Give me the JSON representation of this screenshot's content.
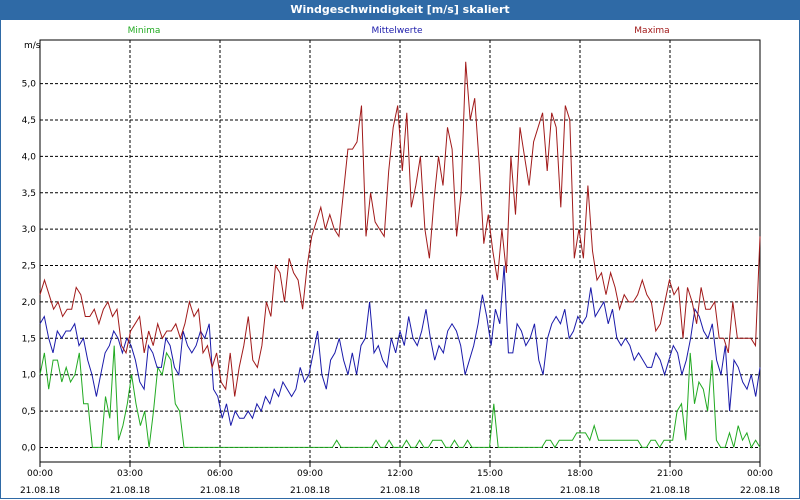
{
  "window": {
    "title": "Windgeschwindigkeit [m/s] skaliert"
  },
  "colors": {
    "minima": "#22aa22",
    "mittelwerte": "#1a1aaa",
    "maxima": "#a11a1a",
    "titlebar": "#2f6aa6"
  },
  "chart_data": {
    "type": "line",
    "ylabel": "m/s",
    "ylim": [
      -0.2,
      5.6
    ],
    "yticks": [
      "0,0",
      "0,5",
      "1,0",
      "1,5",
      "2,0",
      "2,5",
      "3,0",
      "3,5",
      "4,0",
      "4,5",
      "5,0"
    ],
    "ytick_values": [
      0,
      0.5,
      1,
      1.5,
      2,
      2.5,
      3,
      3.5,
      4,
      4.5,
      5
    ],
    "xlim": [
      0,
      24
    ],
    "xticks": [
      {
        "hour": 0,
        "time": "00:00",
        "date": "21.08.18"
      },
      {
        "hour": 3,
        "time": "03:00",
        "date": "21.08.18"
      },
      {
        "hour": 6,
        "time": "06:00",
        "date": "21.08.18"
      },
      {
        "hour": 9,
        "time": "09:00",
        "date": "21.08.18"
      },
      {
        "hour": 12,
        "time": "12:00",
        "date": "21.08.18"
      },
      {
        "hour": 15,
        "time": "15:00",
        "date": "21.08.18"
      },
      {
        "hour": 18,
        "time": "18:00",
        "date": "21.08.18"
      },
      {
        "hour": 21,
        "time": "21:00",
        "date": "21.08.18"
      },
      {
        "hour": 24,
        "time": "00:00",
        "date": "22.08.18"
      }
    ],
    "grid": true,
    "legend_position": "top",
    "x_step_hours": 0.16667,
    "series": [
      {
        "name": "Minima",
        "key": "minima",
        "values": [
          1.0,
          1.3,
          0.8,
          1.2,
          1.2,
          0.9,
          1.1,
          0.9,
          1.0,
          1.3,
          0.6,
          0.6,
          0.0,
          0.0,
          0.0,
          0.7,
          0.4,
          1.4,
          0.1,
          0.3,
          0.6,
          1.0,
          0.6,
          0.3,
          0.5,
          0.0,
          0.5,
          1.1,
          1.0,
          1.3,
          1.2,
          0.6,
          0.5,
          0.0,
          0.0,
          0.0,
          0.0,
          0.0,
          0.0,
          0.0,
          0.0,
          0.0,
          0.0,
          0.0,
          0.0,
          0.0,
          0.0,
          0.0,
          0.0,
          0.0,
          0.0,
          0.0,
          0.0,
          0.0,
          0.0,
          0.0,
          0.0,
          0.0,
          0.0,
          0.0,
          0.0,
          0.0,
          0.0,
          0.0,
          0.0,
          0.0,
          0.0,
          0.0,
          0.1,
          0.0,
          0.0,
          0.0,
          0.0,
          0.0,
          0.0,
          0.0,
          0.0,
          0.1,
          0.0,
          0.0,
          0.1,
          0.0,
          0.0,
          0.0,
          0.1,
          0.0,
          0.0,
          0.1,
          0.0,
          0.0,
          0.1,
          0.1,
          0.1,
          0.0,
          0.0,
          0.1,
          0.0,
          0.0,
          0.1,
          0.0,
          0.0,
          0.0,
          0.0,
          0.0,
          0.6,
          0.0,
          0.0,
          0.0,
          0.0,
          0.0,
          0.0,
          0.0,
          0.0,
          0.0,
          0.0,
          0.0,
          0.1,
          0.1,
          0.0,
          0.1,
          0.1,
          0.1,
          0.1,
          0.2,
          0.2,
          0.2,
          0.1,
          0.3,
          0.1,
          0.1,
          0.1,
          0.1,
          0.1,
          0.1,
          0.1,
          0.1,
          0.1,
          0.1,
          0.0,
          0.0,
          0.1,
          0.1,
          0.0,
          0.1,
          0.1,
          0.1,
          0.5,
          0.6,
          0.1,
          1.3,
          0.6,
          0.9,
          0.8,
          0.5,
          1.2,
          0.1,
          0.0,
          0.0,
          0.2,
          0.0,
          0.3,
          0.1,
          0.2,
          0.0,
          0.1,
          0.0
        ]
      },
      {
        "name": "Mittelwerte",
        "key": "mittelwerte",
        "values": [
          1.7,
          1.8,
          1.5,
          1.3,
          1.6,
          1.5,
          1.6,
          1.6,
          1.7,
          1.4,
          1.5,
          1.2,
          1.0,
          0.7,
          1.0,
          1.3,
          1.4,
          1.6,
          1.5,
          1.3,
          1.5,
          1.4,
          1.2,
          0.9,
          0.8,
          1.4,
          1.3,
          1.1,
          1.1,
          1.5,
          1.4,
          1.1,
          1.0,
          1.6,
          1.4,
          1.3,
          1.4,
          1.6,
          1.5,
          1.7,
          0.8,
          0.7,
          0.4,
          0.6,
          0.3,
          0.5,
          0.4,
          0.4,
          0.5,
          0.4,
          0.6,
          0.5,
          0.7,
          0.6,
          0.8,
          0.7,
          0.9,
          0.8,
          0.7,
          0.8,
          1.1,
          0.9,
          1.0,
          1.3,
          1.6,
          1.0,
          0.8,
          1.2,
          1.3,
          1.5,
          1.2,
          1.0,
          1.3,
          1.0,
          1.4,
          1.5,
          2.0,
          1.3,
          1.4,
          1.2,
          1.1,
          1.5,
          1.3,
          1.6,
          1.4,
          1.8,
          1.5,
          1.4,
          1.6,
          1.9,
          1.5,
          1.2,
          1.4,
          1.3,
          1.6,
          1.7,
          1.6,
          1.4,
          1.0,
          1.2,
          1.4,
          1.7,
          2.1,
          1.8,
          1.4,
          1.9,
          1.7,
          2.5,
          1.3,
          1.3,
          1.7,
          1.6,
          1.4,
          1.5,
          1.7,
          1.2,
          1.0,
          1.5,
          1.7,
          1.8,
          1.7,
          1.9,
          1.5,
          1.6,
          1.8,
          1.7,
          1.8,
          2.2,
          1.8,
          1.9,
          2.0,
          1.7,
          1.9,
          1.5,
          1.4,
          1.5,
          1.4,
          1.2,
          1.3,
          1.2,
          1.1,
          1.1,
          1.3,
          1.2,
          1.0,
          1.2,
          1.4,
          1.3,
          1.0,
          1.2,
          1.5,
          1.9,
          1.8,
          1.6,
          1.5,
          1.7,
          1.2,
          1.0,
          1.4,
          0.5,
          1.2,
          1.1,
          0.9,
          0.8,
          1.0,
          0.7,
          1.1
        ]
      },
      {
        "name": "Maxima",
        "key": "maxima",
        "values": [
          2.1,
          2.3,
          2.1,
          1.9,
          2.0,
          1.8,
          1.9,
          1.9,
          2.2,
          2.1,
          1.8,
          1.8,
          1.9,
          1.7,
          1.9,
          2.0,
          1.8,
          1.9,
          1.4,
          1.3,
          1.6,
          1.7,
          1.8,
          1.3,
          1.6,
          1.4,
          1.7,
          1.5,
          1.6,
          1.6,
          1.7,
          1.5,
          1.7,
          2.0,
          1.8,
          1.9,
          1.3,
          1.4,
          1.1,
          1.3,
          0.9,
          0.8,
          1.3,
          0.7,
          1.1,
          1.4,
          1.8,
          1.2,
          1.1,
          1.4,
          2.0,
          1.8,
          2.5,
          2.4,
          2.0,
          2.6,
          2.4,
          2.3,
          1.9,
          2.5,
          2.9,
          3.1,
          3.3,
          3.0,
          3.2,
          3.0,
          2.9,
          3.5,
          4.1,
          4.1,
          4.2,
          4.7,
          2.9,
          3.5,
          3.1,
          3.0,
          2.9,
          3.8,
          4.4,
          4.7,
          3.8,
          4.6,
          3.3,
          3.6,
          4.0,
          3.0,
          2.6,
          3.4,
          4.0,
          3.6,
          4.4,
          4.1,
          2.9,
          3.5,
          5.3,
          4.5,
          4.8,
          3.9,
          2.8,
          3.2,
          2.7,
          2.3,
          3.0,
          2.4,
          4.0,
          3.2,
          4.4,
          4.0,
          3.6,
          4.2,
          4.4,
          4.6,
          3.8,
          4.6,
          4.4,
          3.3,
          4.7,
          4.5,
          2.6,
          3.0,
          2.6,
          3.6,
          2.7,
          2.3,
          2.4,
          2.1,
          2.4,
          2.2,
          1.9,
          2.1,
          2.0,
          2.0,
          2.1,
          2.3,
          2.1,
          2.0,
          1.6,
          1.7,
          2.0,
          2.3,
          2.1,
          2.2,
          1.5,
          2.2,
          2.0,
          1.7,
          2.2,
          1.9,
          1.9,
          2.0,
          1.5,
          1.5,
          1.3,
          2.0,
          1.5,
          1.5,
          1.5,
          1.5,
          1.4,
          2.9
        ]
      }
    ]
  }
}
